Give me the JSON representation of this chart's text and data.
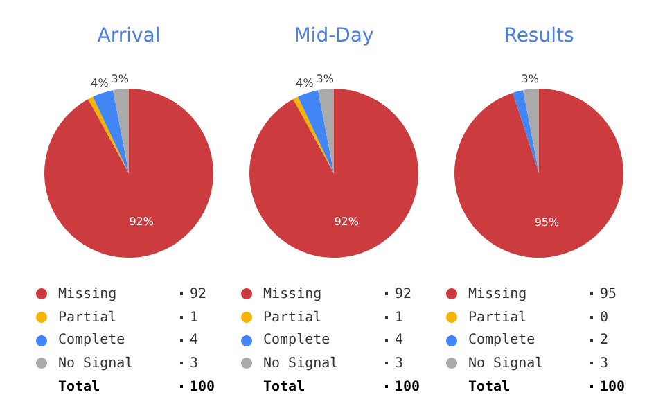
{
  "chart_data": [
    {
      "type": "pie",
      "title": "Arrival",
      "categories": [
        "Missing",
        "Partial",
        "Complete",
        "No Signal"
      ],
      "values": [
        92,
        1,
        4,
        3
      ],
      "colors": [
        "#cc3b3d",
        "#f4b400",
        "#4285f4",
        "#aaaaaa"
      ],
      "value_labels": [
        "92",
        "1",
        "4",
        "3"
      ],
      "legend": "bottom",
      "totals": [
        "100"
      ],
      "annotations": [
        "Total",
        {
          "text": "92%",
          "x": "Missing"
        },
        {
          "text": "4%",
          "x": "Complete"
        },
        {
          "text": "3%",
          "x": "No Signal"
        }
      ]
    },
    {
      "type": "pie",
      "title": "Mid-Day",
      "categories": [
        "Missing",
        "Partial",
        "Complete",
        "No Signal"
      ],
      "values": [
        92,
        1,
        4,
        3
      ],
      "colors": [
        "#cc3b3d",
        "#f4b400",
        "#4285f4",
        "#aaaaaa"
      ],
      "value_labels": [
        "92",
        "1",
        "4",
        "3"
      ],
      "legend": "bottom",
      "totals": [
        "100"
      ],
      "annotations": [
        "Total",
        {
          "text": "92%",
          "x": "Missing"
        },
        {
          "text": "4%",
          "x": "Complete"
        },
        {
          "text": "3%",
          "x": "No Signal"
        }
      ]
    },
    {
      "type": "pie",
      "title": "Results",
      "categories": [
        "Missing",
        "Partial",
        "Complete",
        "No Signal"
      ],
      "values": [
        95,
        0,
        2,
        3
      ],
      "colors": [
        "#cc3b3d",
        "#f4b400",
        "#4285f4",
        "#aaaaaa"
      ],
      "value_labels": [
        "95",
        "0",
        "2",
        "3"
      ],
      "legend": "bottom",
      "totals": [
        "100"
      ],
      "annotations": [
        "Total",
        {
          "text": "95%",
          "x": "Missing"
        },
        {
          "text": "3%",
          "x": "No Signal"
        }
      ]
    }
  ]
}
